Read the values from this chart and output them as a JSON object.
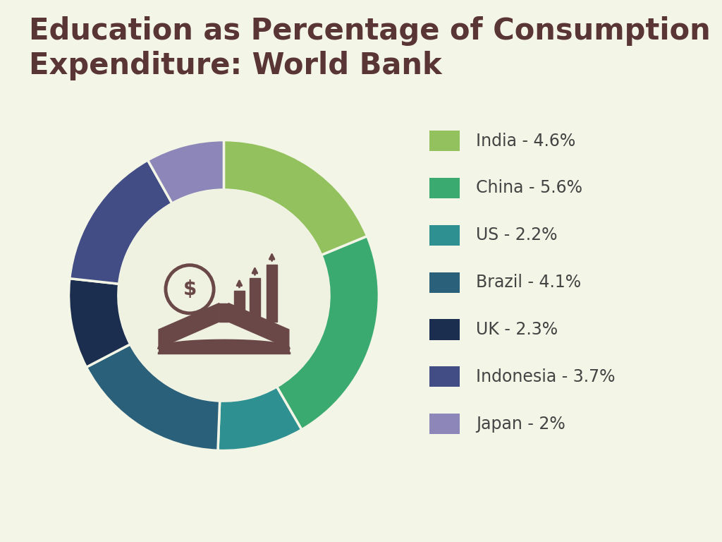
{
  "title": "Education as Percentage of Consumption\nExpenditure: World Bank",
  "background_color": "#f3f5e6",
  "title_color": "#5a3535",
  "title_fontsize": 30,
  "labels": [
    "India",
    "China",
    "US",
    "Brazil",
    "UK",
    "Indonesia",
    "Japan"
  ],
  "values": [
    4.6,
    5.6,
    2.2,
    4.1,
    2.3,
    3.7,
    2.0
  ],
  "colors": [
    "#93c15e",
    "#3aaa70",
    "#2e9090",
    "#2b607a",
    "#1c2e50",
    "#424d85",
    "#8c87b8"
  ],
  "legend_labels": [
    "India - 4.6%",
    "China - 5.6%",
    "US - 2.2%",
    "Brazil - 4.1%",
    "UK - 2.3%",
    "Indonesia - 3.7%",
    "Japan - 2%"
  ],
  "legend_text_color": "#444444",
  "legend_fontsize": 17,
  "donut_width": 0.32,
  "center_circle_color": "#eff1e1",
  "icon_color": "#6b4848",
  "wedge_edge_color": "#f3f5e6",
  "wedge_linewidth": 2.5
}
